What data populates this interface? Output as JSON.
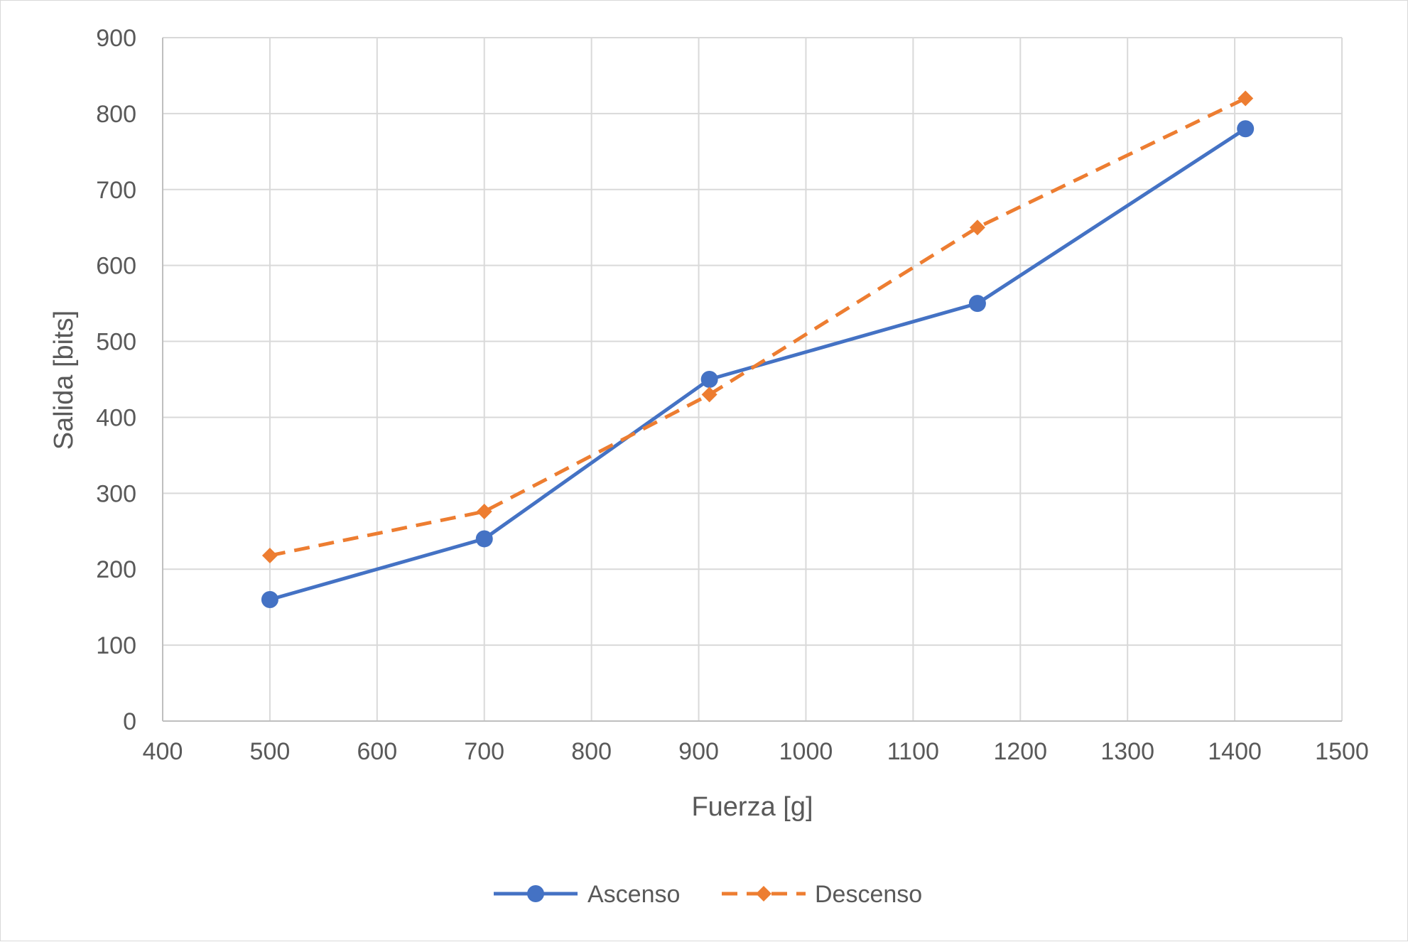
{
  "chart_data": {
    "type": "line",
    "title": "",
    "xlabel": "Fuerza [g]",
    "ylabel": "Salida [bits]",
    "xlim": [
      400,
      1500
    ],
    "ylim": [
      0,
      900
    ],
    "xticks": [
      "400",
      "500",
      "600",
      "700",
      "800",
      "900",
      "1000",
      "1100",
      "1200",
      "1300",
      "1400",
      "1500"
    ],
    "yticks": [
      "0",
      "100",
      "200",
      "300",
      "400",
      "500",
      "600",
      "700",
      "800",
      "900"
    ],
    "grid": true,
    "legend_position": "bottom",
    "series": [
      {
        "name": "Ascenso",
        "color": "#4472c4",
        "line_style": "solid",
        "marker": "circle",
        "x": [
          500,
          700,
          910,
          1160,
          1410
        ],
        "y": [
          160,
          240,
          450,
          550,
          780
        ]
      },
      {
        "name": "Descenso",
        "color": "#ed7d31",
        "line_style": "dashed",
        "marker": "diamond",
        "x": [
          500,
          700,
          910,
          1160,
          1410
        ],
        "y": [
          218,
          276,
          430,
          650,
          820
        ]
      }
    ]
  }
}
